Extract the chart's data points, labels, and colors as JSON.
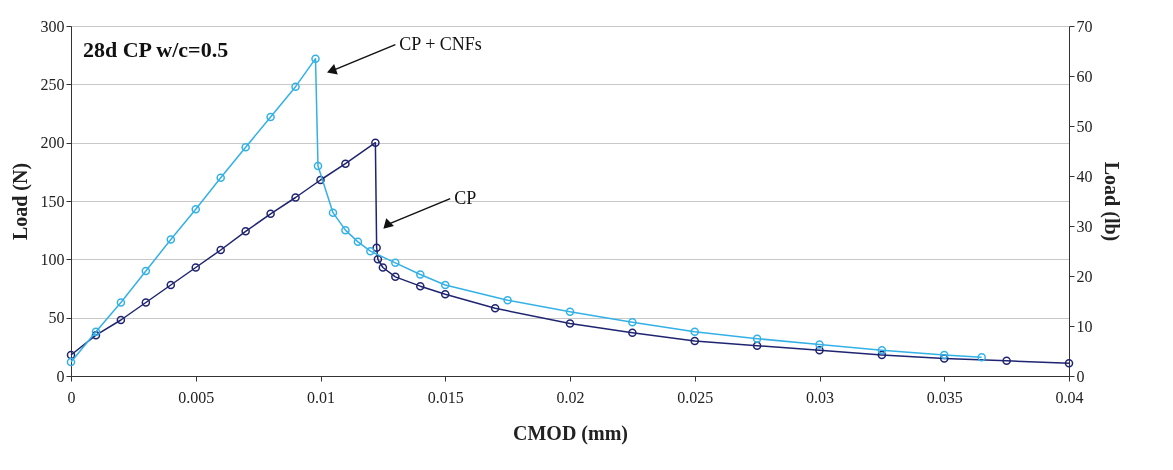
{
  "chart_data": {
    "type": "line",
    "xlabel": "CMOD (mm)",
    "ylabel": "Load (N)",
    "y2label": "Load (lb)",
    "xlim": [
      0,
      0.04
    ],
    "xticks": [
      0,
      0.005,
      0.01,
      0.015,
      0.02,
      0.025,
      0.03,
      0.035,
      0.04
    ],
    "ylim": [
      0,
      300
    ],
    "yticks": [
      0,
      50,
      100,
      150,
      200,
      250,
      300
    ],
    "y2lim": [
      0,
      70
    ],
    "y2ticks": [
      0,
      10,
      20,
      30,
      40,
      50,
      60,
      70
    ],
    "grid": "y",
    "marker": "circle",
    "annotations": [
      "28d CP w/c=0.5",
      {
        "text": "CP  + CNFs",
        "x": 0.0105,
        "y": 262
      },
      {
        "text": "CP",
        "x": 0.0127,
        "y": 130
      }
    ],
    "series": [
      {
        "color": "#1f2470",
        "x": [
          0,
          0.001,
          0.002,
          0.003,
          0.004,
          0.005,
          0.006,
          0.007,
          0.008,
          0.009,
          0.01,
          0.011,
          0.0122,
          0.01225,
          0.0123,
          0.0125,
          0.013,
          0.014,
          0.015,
          0.017,
          0.02,
          0.0225,
          0.025,
          0.0275,
          0.03,
          0.0325,
          0.035,
          0.0375,
          0.04
        ],
        "values": [
          18,
          35,
          48,
          63,
          78,
          93,
          108,
          124,
          139,
          153,
          168,
          182,
          200,
          110,
          100,
          93,
          85,
          77,
          70,
          58,
          45,
          37,
          30,
          26,
          22,
          18,
          15,
          13,
          11
        ]
      },
      {
        "color": "#33b1e6",
        "x": [
          0,
          0.001,
          0.002,
          0.003,
          0.004,
          0.005,
          0.006,
          0.007,
          0.008,
          0.009,
          0.0098,
          0.0099,
          0.0105,
          0.011,
          0.0115,
          0.012,
          0.013,
          0.014,
          0.015,
          0.0175,
          0.02,
          0.0225,
          0.025,
          0.0275,
          0.03,
          0.0325,
          0.035,
          0.0365
        ],
        "values": [
          12,
          38,
          63,
          90,
          117,
          143,
          170,
          196,
          222,
          248,
          272,
          180,
          140,
          125,
          115,
          107,
          97,
          87,
          78,
          65,
          55,
          46,
          38,
          32,
          27,
          22,
          18,
          16
        ]
      }
    ]
  }
}
